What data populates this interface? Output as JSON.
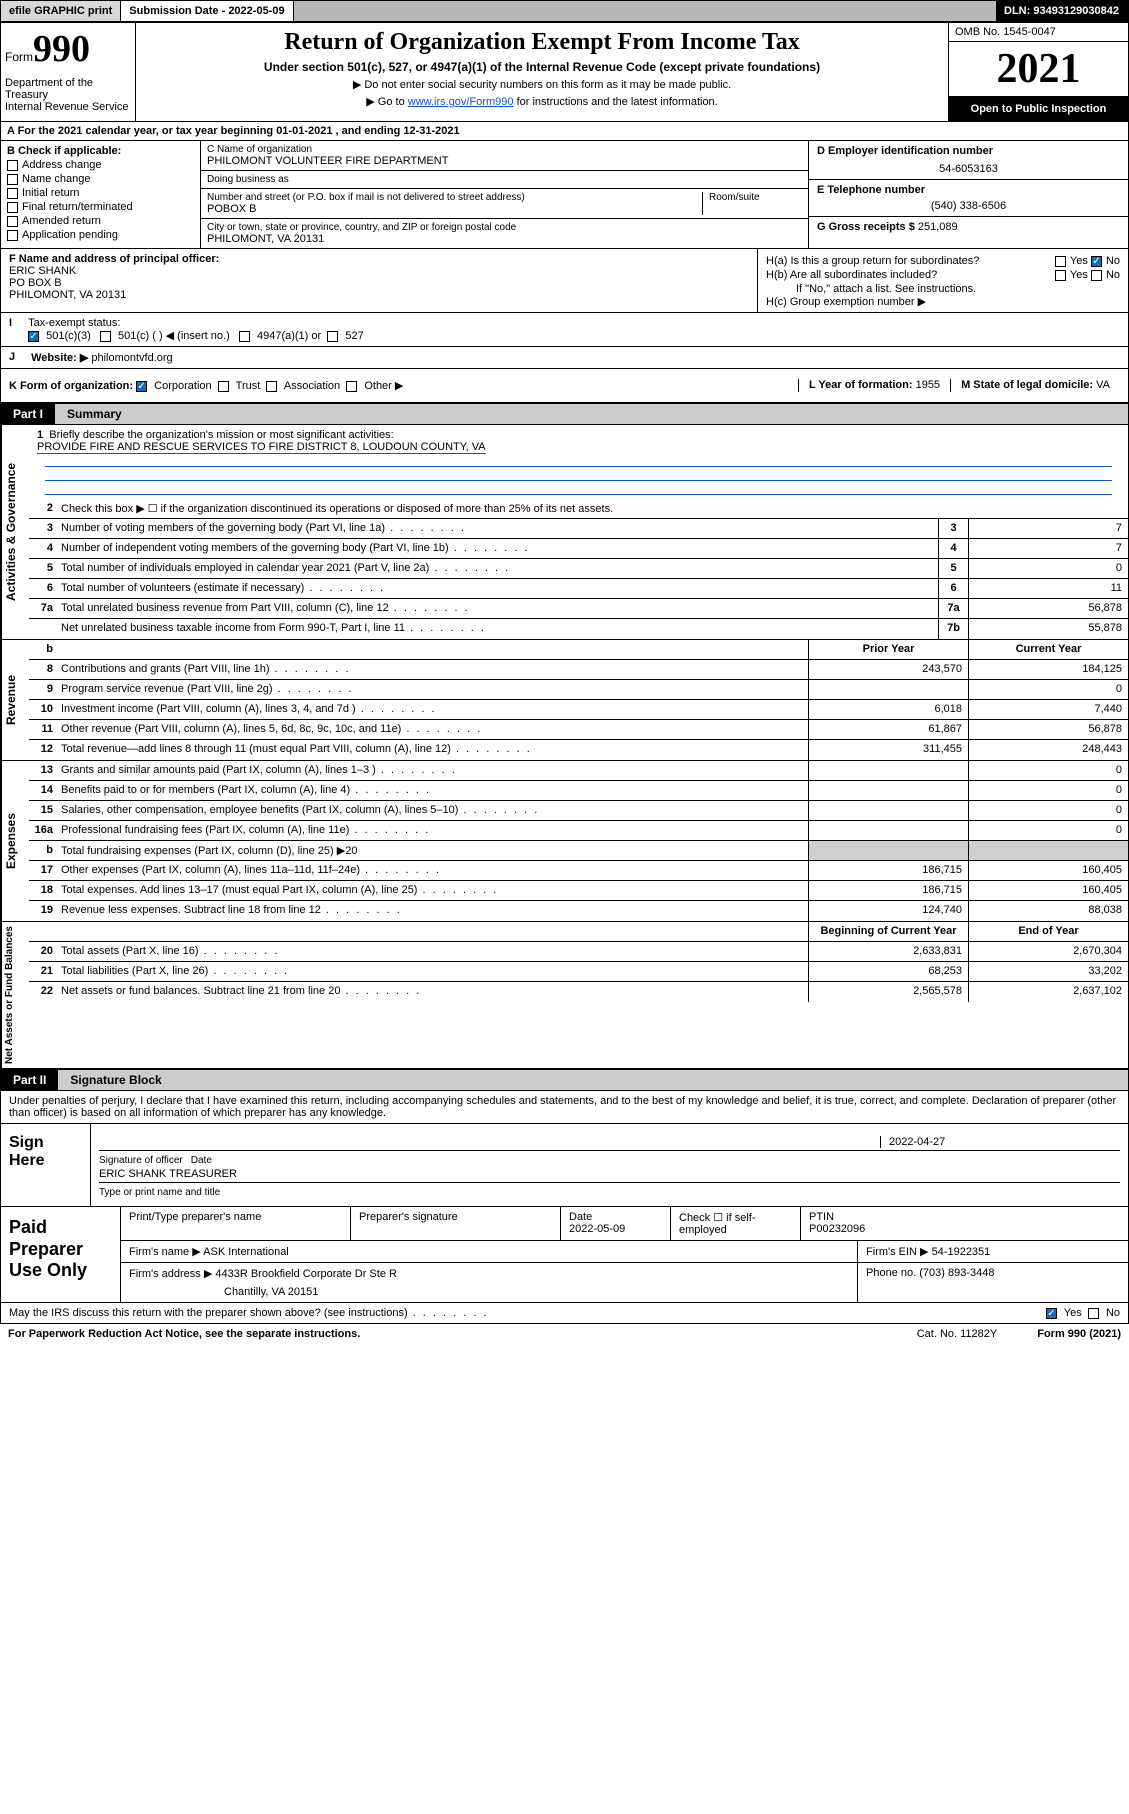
{
  "topbar": {
    "efile": "efile GRAPHIC print",
    "submission_label": "Submission Date - 2022-05-09",
    "dln": "DLN: 93493129030842"
  },
  "header": {
    "form_word": "Form",
    "form_num": "990",
    "title": "Return of Organization Exempt From Income Tax",
    "subtitle": "Under section 501(c), 527, or 4947(a)(1) of the Internal Revenue Code (except private foundations)",
    "note1": "Do not enter social security numbers on this form as it may be made public.",
    "note2_pre": "Go to ",
    "note2_link": "www.irs.gov/Form990",
    "note2_post": " for instructions and the latest information.",
    "dept": "Department of the Treasury\nInternal Revenue Service",
    "omb": "OMB No. 1545-0047",
    "year": "2021",
    "open": "Open to Public Inspection"
  },
  "section_a": "A For the 2021 calendar year, or tax year beginning 01-01-2021    , and ending 12-31-2021",
  "col_b": {
    "label": "B Check if applicable:",
    "items": [
      "Address change",
      "Name change",
      "Initial return",
      "Final return/terminated",
      "Amended return",
      "Application pending"
    ]
  },
  "col_c": {
    "name_label": "C Name of organization",
    "name": "PHILOMONT VOLUNTEER FIRE DEPARTMENT",
    "dba_label": "Doing business as",
    "street_label": "Number and street (or P.O. box if mail is not delivered to street address)",
    "room_label": "Room/suite",
    "street": "POBOX B",
    "city_label": "City or town, state or province, country, and ZIP or foreign postal code",
    "city": "PHILOMONT, VA  20131"
  },
  "col_de": {
    "d_label": "D Employer identification number",
    "ein": "54-6053163",
    "e_label": "E Telephone number",
    "phone": "(540) 338-6506",
    "g_label": "G Gross receipts $",
    "gross": "251,089"
  },
  "row_f": {
    "label": "F Name and address of principal officer:",
    "name": "ERIC SHANK",
    "addr1": "PO BOX B",
    "addr2": "PHILOMONT, VA  20131"
  },
  "row_h": {
    "ha": "H(a)  Is this a group return for subordinates?",
    "hb": "H(b)  Are all subordinates included?",
    "hb_note": "If \"No,\" attach a list. See instructions.",
    "hc": "H(c)  Group exemption number ▶",
    "yes": "Yes",
    "no": "No"
  },
  "row_i": {
    "label": "I",
    "tax_label": "Tax-exempt status:",
    "c3": "501(c)(3)",
    "c_other": "501(c) (   ) ◀ (insert no.)",
    "a1": "4947(a)(1) or",
    "s527": "527"
  },
  "row_j": {
    "label": "J",
    "web_label": "Website: ▶",
    "website": "philomontvfd.org"
  },
  "row_k": {
    "label": "K Form of organization:",
    "corp": "Corporation",
    "trust": "Trust",
    "assoc": "Association",
    "other": "Other ▶",
    "l_label": "L Year of formation: ",
    "l_val": "1955",
    "m_label": "M State of legal domicile: ",
    "m_val": "VA"
  },
  "part1": {
    "num": "Part I",
    "title": "Summary"
  },
  "briefly": {
    "num": "1",
    "label": "Briefly describe the organization's mission or most significant activities:",
    "text": "PROVIDE FIRE AND RESCUE SERVICES TO FIRE DISTRICT 8, LOUDOUN COUNTY, VA"
  },
  "gov_lines": [
    {
      "n": "2",
      "d": "Check this box ▶ ☐  if the organization discontinued its operations or disposed of more than 25% of its net assets."
    },
    {
      "n": "3",
      "d": "Number of voting members of the governing body (Part VI, line 1a)",
      "c": "3",
      "v": "7"
    },
    {
      "n": "4",
      "d": "Number of independent voting members of the governing body (Part VI, line 1b)",
      "c": "4",
      "v": "7"
    },
    {
      "n": "5",
      "d": "Total number of individuals employed in calendar year 2021 (Part V, line 2a)",
      "c": "5",
      "v": "0"
    },
    {
      "n": "6",
      "d": "Total number of volunteers (estimate if necessary)",
      "c": "6",
      "v": "11"
    },
    {
      "n": "7a",
      "d": "Total unrelated business revenue from Part VIII, column (C), line 12",
      "c": "7a",
      "v": "56,878"
    },
    {
      "n": "",
      "d": "Net unrelated business taxable income from Form 990-T, Part I, line 11",
      "c": "7b",
      "v": "55,878"
    }
  ],
  "rev_hdr": {
    "b": "b",
    "prior": "Prior Year",
    "current": "Current Year"
  },
  "rev_lines": [
    {
      "n": "8",
      "d": "Contributions and grants (Part VIII, line 1h)",
      "p": "243,570",
      "c": "184,125"
    },
    {
      "n": "9",
      "d": "Program service revenue (Part VIII, line 2g)",
      "p": "",
      "c": "0"
    },
    {
      "n": "10",
      "d": "Investment income (Part VIII, column (A), lines 3, 4, and 7d )",
      "p": "6,018",
      "c": "7,440"
    },
    {
      "n": "11",
      "d": "Other revenue (Part VIII, column (A), lines 5, 6d, 8c, 9c, 10c, and 11e)",
      "p": "61,867",
      "c": "56,878"
    },
    {
      "n": "12",
      "d": "Total revenue—add lines 8 through 11 (must equal Part VIII, column (A), line 12)",
      "p": "311,455",
      "c": "248,443"
    }
  ],
  "exp_lines": [
    {
      "n": "13",
      "d": "Grants and similar amounts paid (Part IX, column (A), lines 1–3 )",
      "p": "",
      "c": "0"
    },
    {
      "n": "14",
      "d": "Benefits paid to or for members (Part IX, column (A), line 4)",
      "p": "",
      "c": "0"
    },
    {
      "n": "15",
      "d": "Salaries, other compensation, employee benefits (Part IX, column (A), lines 5–10)",
      "p": "",
      "c": "0"
    },
    {
      "n": "16a",
      "d": "Professional fundraising fees (Part IX, column (A), line 11e)",
      "p": "",
      "c": "0"
    },
    {
      "n": "b",
      "d": "Total fundraising expenses (Part IX, column (D), line 25) ▶20",
      "shade": true
    },
    {
      "n": "17",
      "d": "Other expenses (Part IX, column (A), lines 11a–11d, 11f–24e)",
      "p": "186,715",
      "c": "160,405"
    },
    {
      "n": "18",
      "d": "Total expenses. Add lines 13–17 (must equal Part IX, column (A), line 25)",
      "p": "186,715",
      "c": "160,405"
    },
    {
      "n": "19",
      "d": "Revenue less expenses. Subtract line 18 from line 12",
      "p": "124,740",
      "c": "88,038"
    }
  ],
  "na_hdr": {
    "begin": "Beginning of Current Year",
    "end": "End of Year"
  },
  "na_lines": [
    {
      "n": "20",
      "d": "Total assets (Part X, line 16)",
      "p": "2,633,831",
      "c": "2,670,304"
    },
    {
      "n": "21",
      "d": "Total liabilities (Part X, line 26)",
      "p": "68,253",
      "c": "33,202"
    },
    {
      "n": "22",
      "d": "Net assets or fund balances. Subtract line 21 from line 20",
      "p": "2,565,578",
      "c": "2,637,102"
    }
  ],
  "part2": {
    "num": "Part II",
    "title": "Signature Block"
  },
  "penalties": "Under penalties of perjury, I declare that I have examined this return, including accompanying schedules and statements, and to the best of my knowledge and belief, it is true, correct, and complete. Declaration of preparer (other than officer) is based on all information of which preparer has any knowledge.",
  "sign": {
    "label": "Sign Here",
    "sig_label": "Signature of officer",
    "date_label": "Date",
    "date": "2022-04-27",
    "name": "ERIC SHANK  TREASURER",
    "name_label": "Type or print name and title"
  },
  "paid": {
    "label": "Paid Preparer Use Only",
    "r1": {
      "c1": "Print/Type preparer's name",
      "c2": "Preparer's signature",
      "c3": "Date",
      "c3v": "2022-05-09",
      "c4": "Check ☐ if self-employed",
      "c5": "PTIN",
      "c5v": "P00232096"
    },
    "r2": {
      "c1": "Firm's name    ▶",
      "c1v": "ASK International",
      "c2": "Firm's EIN ▶",
      "c2v": "54-1922351"
    },
    "r3": {
      "c1": "Firm's address ▶",
      "c1v": "4433R Brookfield Corporate Dr Ste R",
      "c2": "Phone no.",
      "c2v": "(703) 893-3448"
    },
    "r3b": "Chantilly, VA  20151"
  },
  "footer": {
    "q": "May the IRS discuss this return with the preparer shown above? (see instructions)",
    "yes": "Yes",
    "no": "No"
  },
  "paperwork": {
    "l": "For Paperwork Reduction Act Notice, see the separate instructions.",
    "cat": "Cat. No. 11282Y",
    "form": "Form 990 (2021)"
  },
  "colors": {
    "link": "#1155cc",
    "check": "#1a6bb8",
    "grey_bg": "#b8b8b8",
    "grey_btn": "#d8d8d8",
    "shade": "#d0d0d0"
  }
}
